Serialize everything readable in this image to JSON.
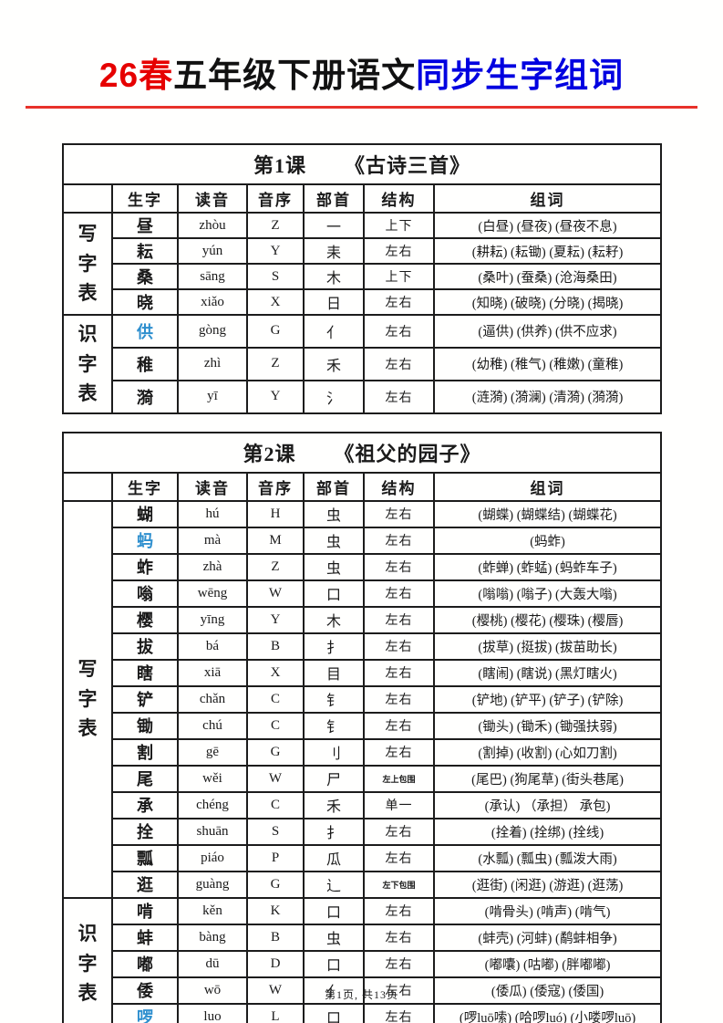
{
  "page": {
    "title": {
      "part_red": "26春",
      "part_black": "五年级下册语文",
      "part_blue": "同步生字组词"
    },
    "footer": "第1页, 共13页",
    "colors": {
      "title_red": "#e60000",
      "title_blue": "#0000e0",
      "underline_red": "#e8312a",
      "highlight_char_blue": "#2e8fce"
    }
  },
  "table_headers": [
    "生字",
    "读音",
    "音序",
    "部首",
    "结构",
    "组词"
  ],
  "tables": [
    {
      "lesson_label": "第1课",
      "lesson_title": "《古诗三首》",
      "sections": [
        {
          "label": "写字表",
          "rows": [
            {
              "char": "昼",
              "pinyin": "zhòu",
              "initial": "Z",
              "radical": "一",
              "structure": "上下",
              "words": "(白昼) (昼夜) (昼夜不息)"
            },
            {
              "char": "耘",
              "pinyin": "yún",
              "initial": "Y",
              "radical": "耒",
              "structure": "左右",
              "words": "(耕耘) (耘锄) (夏耘) (耘耔)"
            },
            {
              "char": "桑",
              "pinyin": "sāng",
              "initial": "S",
              "radical": "木",
              "structure": "上下",
              "words": "(桑叶) (蚕桑) (沧海桑田)"
            },
            {
              "char": "晓",
              "pinyin": "xiǎo",
              "initial": "X",
              "radical": "日",
              "structure": "左右",
              "words": "(知晓) (破晓) (分晓) (揭晓)"
            }
          ]
        },
        {
          "label": "识字表",
          "rows": [
            {
              "char": "供",
              "blue": true,
              "pinyin": "gòng",
              "initial": "G",
              "radical": "亻",
              "structure": "左右",
              "words": "(逼供) (供养) (供不应求)"
            },
            {
              "char": "稚",
              "pinyin": "zhì",
              "initial": "Z",
              "radical": "禾",
              "structure": "左右",
              "words": "(幼稚) (稚气) (稚嫩) (童稚)"
            },
            {
              "char": "漪",
              "pinyin": "yī",
              "initial": "Y",
              "radical": "氵",
              "structure": "左右",
              "words": "(涟漪) (漪澜) (清漪) (漪漪)"
            }
          ]
        }
      ]
    },
    {
      "lesson_label": "第2课",
      "lesson_title": "《祖父的园子》",
      "sections": [
        {
          "label": "写字表",
          "rows": [
            {
              "char": "蝴",
              "pinyin": "hú",
              "initial": "H",
              "radical": "虫",
              "structure": "左右",
              "words": "(蝴蝶) (蝴蝶结) (蝴蝶花)"
            },
            {
              "char": "蚂",
              "blue": true,
              "pinyin": "mà",
              "initial": "M",
              "radical": "虫",
              "structure": "左右",
              "words": "(蚂蚱)"
            },
            {
              "char": "蚱",
              "pinyin": "zhà",
              "initial": "Z",
              "radical": "虫",
              "structure": "左右",
              "words": "(蚱蝉) (蚱蜢) (蚂蚱车子)"
            },
            {
              "char": "嗡",
              "pinyin": "wēng",
              "initial": "W",
              "radical": "口",
              "structure": "左右",
              "words": "(嗡嗡) (嗡子) (大轰大嗡)"
            },
            {
              "char": "樱",
              "pinyin": "yīng",
              "initial": "Y",
              "radical": "木",
              "structure": "左右",
              "words": "(樱桃) (樱花) (樱珠) (樱唇)"
            },
            {
              "char": "拔",
              "pinyin": "bá",
              "initial": "B",
              "radical": "扌",
              "structure": "左右",
              "words": "(拔草) (挺拔) (拔苗助长)"
            },
            {
              "char": "瞎",
              "pinyin": "xiā",
              "initial": "X",
              "radical": "目",
              "structure": "左右",
              "words": "(瞎闹) (瞎说) (黑灯瞎火)"
            },
            {
              "char": "铲",
              "pinyin": "chǎn",
              "initial": "C",
              "radical": "钅",
              "structure": "左右",
              "words": "(铲地) (铲平) (铲子) (铲除)"
            },
            {
              "char": "锄",
              "pinyin": "chú",
              "initial": "C",
              "radical": "钅",
              "structure": "左右",
              "words": "(锄头) (锄禾) (锄强扶弱)"
            },
            {
              "char": "割",
              "pinyin": "gē",
              "initial": "G",
              "radical": "刂",
              "structure": "左右",
              "words": "(割掉) (收割) (心如刀割)"
            },
            {
              "char": "尾",
              "pinyin": "wěi",
              "initial": "W",
              "radical": "尸",
              "structure": "左上包围",
              "structure_small": true,
              "words": "(尾巴) (狗尾草) (街头巷尾)"
            },
            {
              "char": "承",
              "pinyin": "chéng",
              "initial": "C",
              "radical": "禾",
              "structure": "单一",
              "words": "(承认) （承担） 承包)"
            },
            {
              "char": "拴",
              "pinyin": "shuān",
              "initial": "S",
              "radical": "扌",
              "structure": "左右",
              "words": "(拴着) (拴绑) (拴线)"
            },
            {
              "char": "瓢",
              "pinyin": "piáo",
              "initial": "P",
              "radical": "瓜",
              "structure": "左右",
              "words": "(水瓢) (瓢虫) (瓢泼大雨)"
            },
            {
              "char": "逛",
              "pinyin": "guàng",
              "initial": "G",
              "radical": "辶",
              "structure": "左下包围",
              "structure_small": true,
              "words": "(逛街) (闲逛) (游逛) (逛荡)"
            }
          ]
        },
        {
          "label": "识字表",
          "rows": [
            {
              "char": "啃",
              "pinyin": "kěn",
              "initial": "K",
              "radical": "口",
              "structure": "左右",
              "words": "(啃骨头) (啃声) (啃气)"
            },
            {
              "char": "蚌",
              "pinyin": "bàng",
              "initial": "B",
              "radical": "虫",
              "structure": "左右",
              "words": "(蚌壳) (河蚌) (鹬蚌相争)"
            },
            {
              "char": "嘟",
              "pinyin": "dū",
              "initial": "D",
              "radical": "口",
              "structure": "左右",
              "words": "(嘟囔) (咕嘟) (胖嘟嘟)"
            },
            {
              "char": "倭",
              "pinyin": "wō",
              "initial": "W",
              "radical": "亻",
              "structure": "左右",
              "words": "(倭瓜) (倭寇) (倭国)"
            },
            {
              "char": "啰",
              "blue": true,
              "pinyin": "luo",
              "initial": "L",
              "radical": "口",
              "structure": "左右",
              "words": "(啰luō嗦) (哈啰luó) (小喽啰luō)"
            }
          ]
        }
      ]
    }
  ]
}
